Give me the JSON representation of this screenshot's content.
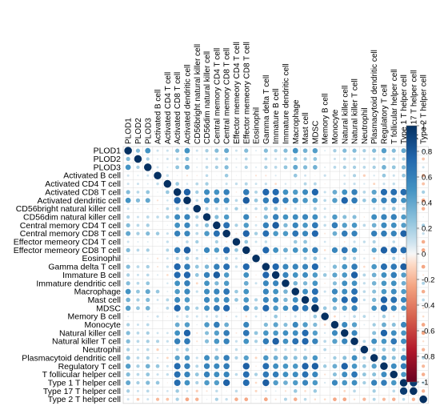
{
  "chart_data": {
    "type": "heatmap",
    "variables": [
      "PLOD1",
      "PLOD2",
      "PLOD3",
      "Activated B cell",
      "Activated CD4 T cell",
      "Activated CD8 T cell",
      "Activated dendritic cell",
      "CD56bright natural killer cell",
      "CD56dim natural killer cell",
      "Central memory CD4 T cell",
      "Central memory CD8 T cell",
      "Effector memeory CD4 T cell",
      "Effector memeory CD8 T cell",
      "Eosinophil",
      "Gamma delta T cell",
      "Immature  B cell",
      "Immature dendritic cell",
      "Macrophage",
      "Mast cell",
      "MDSC",
      "Memory B cell",
      "Monocyte",
      "Natural killer cell",
      "Natural killer T cell",
      "Neutrophil",
      "Plasmacytoid dendritic cell",
      "Regulatory T cell",
      "T follicular helper cell",
      "Type 1 T helper cell",
      "Type 17 T helper cell",
      "Type 2 T helper cell"
    ],
    "plod_correlations": {
      "PLOD1": [
        1.0,
        0.3,
        0.5,
        0.1,
        0.1,
        0.3,
        0.5,
        0.1,
        0.2,
        0.3,
        0.4,
        0.1,
        0.3,
        0.05,
        0.3,
        0.2,
        0.3,
        0.5,
        0.35,
        0.45,
        0.05,
        0.2,
        0.3,
        0.3,
        0.2,
        0.3,
        0.45,
        0.3,
        0.4,
        0.2,
        0.1
      ],
      "PLOD2": [
        0.3,
        1.0,
        0.2,
        0.05,
        0.1,
        0.15,
        0.3,
        0.05,
        0.1,
        0.15,
        0.2,
        0.05,
        0.15,
        0.0,
        0.15,
        0.1,
        0.15,
        0.25,
        0.2,
        0.25,
        0.0,
        0.1,
        0.15,
        0.15,
        0.1,
        0.15,
        0.2,
        0.15,
        0.2,
        0.1,
        -0.15
      ],
      "PLOD3": [
        0.5,
        0.2,
        1.0,
        0.1,
        0.05,
        0.25,
        0.4,
        0.05,
        0.15,
        0.2,
        0.3,
        0.05,
        0.2,
        0.05,
        0.2,
        0.15,
        0.25,
        0.4,
        0.3,
        0.35,
        0.05,
        0.15,
        0.2,
        0.2,
        0.15,
        0.2,
        0.35,
        0.25,
        0.3,
        0.15,
        0.1
      ]
    },
    "color_scale": {
      "min": -1,
      "max": 1,
      "ticks": [
        "1",
        "0.8",
        "0.6",
        "0.4",
        "0.2",
        "0",
        "-0.2",
        "-0.4",
        "-0.6",
        "-0.8",
        "-1"
      ],
      "negative_color": "#67001f",
      "neutral_color": "#f7f7f7",
      "positive_color": "#053061"
    },
    "glyph": "circle",
    "layout": "full-matrix",
    "grid": true
  }
}
